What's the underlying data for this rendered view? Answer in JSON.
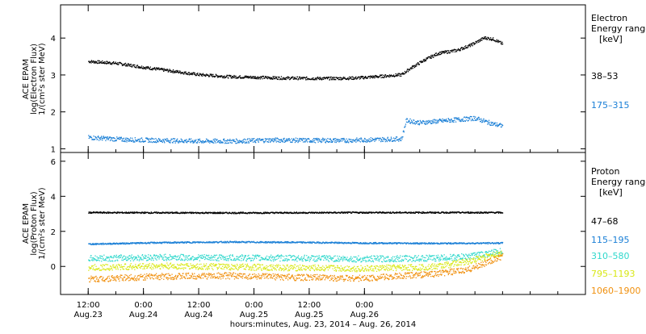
{
  "chart_data": [
    {
      "type": "scatter",
      "ylabel_lines": [
        "ACE EPAM",
        "log(Electron Flux)",
        "1/(cm²s ster MeV)"
      ],
      "ylim": [
        0.9,
        4.9
      ],
      "yticks": [
        1,
        2,
        3,
        4
      ],
      "legend_title": [
        "Electron",
        "Energy ranges"
      ],
      "legend_unit": "[keV]",
      "series": [
        {
          "name": "38–53",
          "color": "#000000",
          "points": [
            [
              0,
              3.38
            ],
            [
              6,
              3.33
            ],
            [
              12,
              3.22
            ],
            [
              18,
              3.12
            ],
            [
              24,
              3.02
            ],
            [
              30,
              2.97
            ],
            [
              36,
              2.95
            ],
            [
              42,
              2.93
            ],
            [
              48,
              2.92
            ],
            [
              54,
              2.92
            ],
            [
              58,
              2.93
            ],
            [
              64,
              2.98
            ],
            [
              68,
              3.02
            ],
            [
              70,
              3.2
            ],
            [
              73,
              3.42
            ],
            [
              76,
              3.6
            ],
            [
              80,
              3.68
            ],
            [
              83,
              3.82
            ],
            [
              86,
              4.02
            ],
            [
              88,
              3.98
            ],
            [
              90,
              3.85
            ]
          ]
        },
        {
          "name": "175–315",
          "color": "#1a7fd6",
          "points": [
            [
              0,
              1.32
            ],
            [
              8,
              1.26
            ],
            [
              16,
              1.24
            ],
            [
              24,
              1.22
            ],
            [
              32,
              1.22
            ],
            [
              40,
              1.25
            ],
            [
              48,
              1.24
            ],
            [
              56,
              1.24
            ],
            [
              62,
              1.26
            ],
            [
              68,
              1.28
            ],
            [
              69,
              1.78
            ],
            [
              72,
              1.72
            ],
            [
              76,
              1.76
            ],
            [
              80,
              1.8
            ],
            [
              84,
              1.84
            ],
            [
              88,
              1.68
            ],
            [
              90,
              1.63
            ]
          ]
        }
      ]
    },
    {
      "type": "scatter",
      "ylabel_lines": [
        "ACE EPAM",
        "log(Proton Flux)",
        "1/(cm²s ster MeV)"
      ],
      "ylim": [
        -1.6,
        6.5
      ],
      "yticks": [
        0,
        2,
        4,
        6
      ],
      "legend_title": [
        "Proton",
        "Energy ranges"
      ],
      "legend_unit": "[keV]",
      "series": [
        {
          "name": "47–68",
          "color": "#000000",
          "points": [
            [
              0,
              3.1
            ],
            [
              30,
              3.08
            ],
            [
              60,
              3.1
            ],
            [
              90,
              3.1
            ]
          ]
        },
        {
          "name": "115–195",
          "color": "#1a7fd6",
          "points": [
            [
              0,
              1.3
            ],
            [
              15,
              1.38
            ],
            [
              30,
              1.42
            ],
            [
              45,
              1.4
            ],
            [
              60,
              1.36
            ],
            [
              75,
              1.34
            ],
            [
              90,
              1.36
            ]
          ]
        },
        {
          "name": "310–580",
          "color": "#30d8cc",
          "points": [
            [
              0,
              0.48
            ],
            [
              15,
              0.55
            ],
            [
              30,
              0.52
            ],
            [
              45,
              0.5
            ],
            [
              60,
              0.45
            ],
            [
              75,
              0.5
            ],
            [
              82,
              0.58
            ],
            [
              90,
              0.9
            ]
          ]
        },
        {
          "name": "795–1193",
          "color": "#d8e816",
          "points": [
            [
              0,
              -0.05
            ],
            [
              15,
              0.05
            ],
            [
              30,
              0.0
            ],
            [
              45,
              -0.05
            ],
            [
              60,
              -0.1
            ],
            [
              75,
              0.0
            ],
            [
              82,
              0.3
            ],
            [
              90,
              0.8
            ]
          ]
        },
        {
          "name": "1060–1900",
          "color": "#f0900e",
          "points": [
            [
              0,
              -0.7
            ],
            [
              15,
              -0.55
            ],
            [
              30,
              -0.5
            ],
            [
              45,
              -0.6
            ],
            [
              60,
              -0.65
            ],
            [
              75,
              -0.4
            ],
            [
              82,
              -0.2
            ],
            [
              90,
              0.6
            ]
          ]
        }
      ]
    }
  ],
  "x_axis": {
    "xlim": [
      -6,
      108
    ],
    "ticks": [
      {
        "x": 0,
        "top": "12:00",
        "bottom": "Aug.23"
      },
      {
        "x": 12,
        "top": "0:00",
        "bottom": "Aug.24"
      },
      {
        "x": 24,
        "top": "12:00",
        "bottom": "Aug.24"
      },
      {
        "x": 36,
        "top": "0:00",
        "bottom": "Aug.25"
      },
      {
        "x": 48,
        "top": "12:00",
        "bottom": "Aug.25"
      },
      {
        "x": 60,
        "top": "0:00",
        "bottom": "Aug.26"
      }
    ],
    "label": "hours:minutes, Aug. 23, 2014 – Aug. 26, 2014"
  }
}
